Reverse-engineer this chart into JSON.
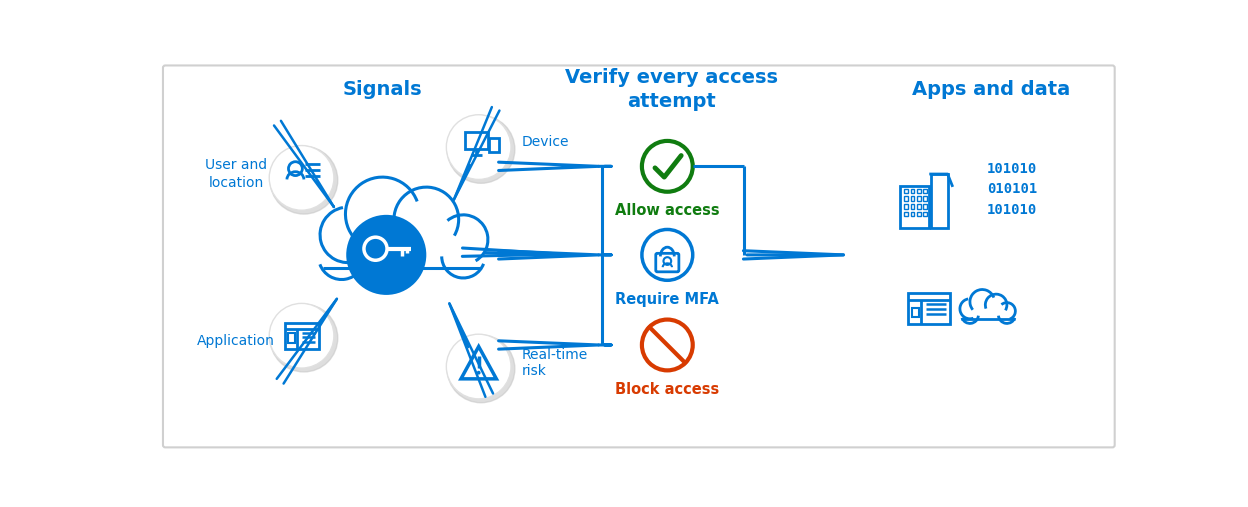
{
  "bg_color": "#ffffff",
  "border_color": "#d0d0d0",
  "blue": "#0078d4",
  "green": "#107c10",
  "orange": "#d83b01",
  "title_signals": "Signals",
  "title_verify": "Verify every access\nattempt",
  "title_apps": "Apps and data",
  "label_user": "User and\nlocation",
  "label_device": "Device",
  "label_app": "Application",
  "label_risk": "Real-time\nrisk",
  "label_allow": "Allow access",
  "label_mfa": "Require MFA",
  "label_block": "Block access",
  "circle_bg": "#ffffff",
  "circle_shadow": "#e0e0e0"
}
